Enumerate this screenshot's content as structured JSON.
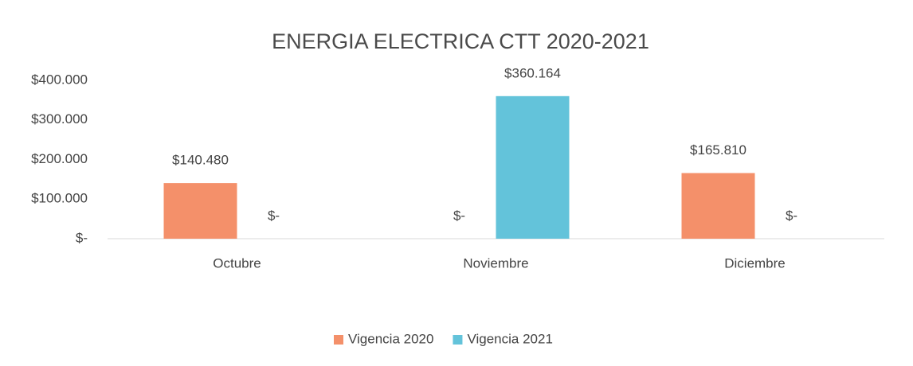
{
  "chart_data": {
    "type": "bar",
    "title": "ENERGIA ELECTRICA CTT 2020-2021",
    "categories": [
      "Octubre",
      "Noviembre",
      "Diciembre"
    ],
    "series": [
      {
        "name": "Vigencia 2020",
        "color": "#f4906a",
        "values": [
          140480,
          0,
          165810
        ],
        "value_labels": [
          "$140.480",
          "$-",
          "$165.810"
        ]
      },
      {
        "name": "Vigencia 2021",
        "color": "#63c3da",
        "values": [
          0,
          360164,
          0
        ],
        "value_labels": [
          "$-",
          "$360.164",
          "$-"
        ]
      }
    ],
    "ylim": [
      0,
      400000
    ],
    "yticks": [
      {
        "value": 0,
        "label": "$-"
      },
      {
        "value": 100000,
        "label": "$100.000"
      },
      {
        "value": 200000,
        "label": "$200.000"
      },
      {
        "value": 300000,
        "label": "$300.000"
      },
      {
        "value": 400000,
        "label": "$400.000"
      }
    ],
    "grid": false,
    "legend": "bottom"
  }
}
